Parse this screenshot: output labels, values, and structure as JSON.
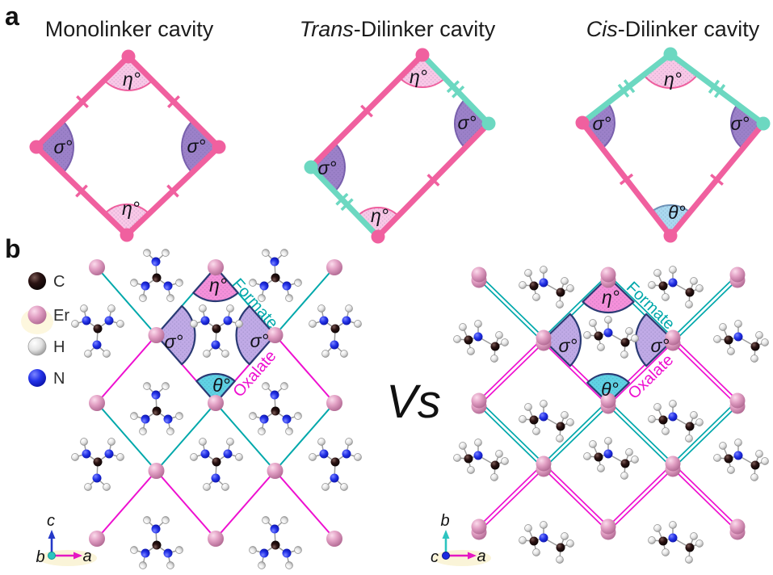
{
  "panel_a": {
    "label": "a",
    "cavities": [
      {
        "title_italic": "",
        "title_rest": "Monolinker cavity"
      },
      {
        "title_italic": "Trans",
        "title_rest": "-Dilinker cavity"
      },
      {
        "title_italic": "Cis",
        "title_rest": "-Dilinker cavity"
      }
    ]
  },
  "symbols": {
    "eta": "η°",
    "sigma": "σ°",
    "theta": "θ°"
  },
  "panel_b": {
    "label": "b",
    "legend": [
      {
        "element": "C"
      },
      {
        "element": "Er"
      },
      {
        "element": "H"
      },
      {
        "element": "N"
      }
    ],
    "vs": "Vs",
    "linker_formate": "Formate",
    "linker_oxalate": "Oxalate",
    "axes_left": {
      "up": "c",
      "right": "a",
      "out": "b"
    },
    "axes_right": {
      "up": "b",
      "right": "a",
      "out": "c"
    }
  },
  "colors": {
    "pink": "#f0609f",
    "mint": "#6cd8c1",
    "eta_fill_a": "#f9c8e7",
    "sigma_fill_a": "#9c81c9",
    "sigma_stroke_a": "#7a61ae",
    "theta_fill_a": "#aad9f0",
    "theta_stroke_a": "#6e93b8",
    "formate": "#00a8ab",
    "oxalate": "#ee10d0",
    "eta_fill_b": "#f590da",
    "sigma_fill_b": "#c0aae6",
    "theta_fill_b": "#5fd2e4",
    "wedge_stroke": "#2a3a74",
    "atom_C": "#1a0d0d",
    "atom_Er": "#dd9cbd",
    "atom_H": "#e8e8e8",
    "atom_N": "#1b2ae0",
    "axis_a": "#e518c2",
    "axis_b": "#2cc4c0",
    "axis_c": "#2438c8"
  }
}
